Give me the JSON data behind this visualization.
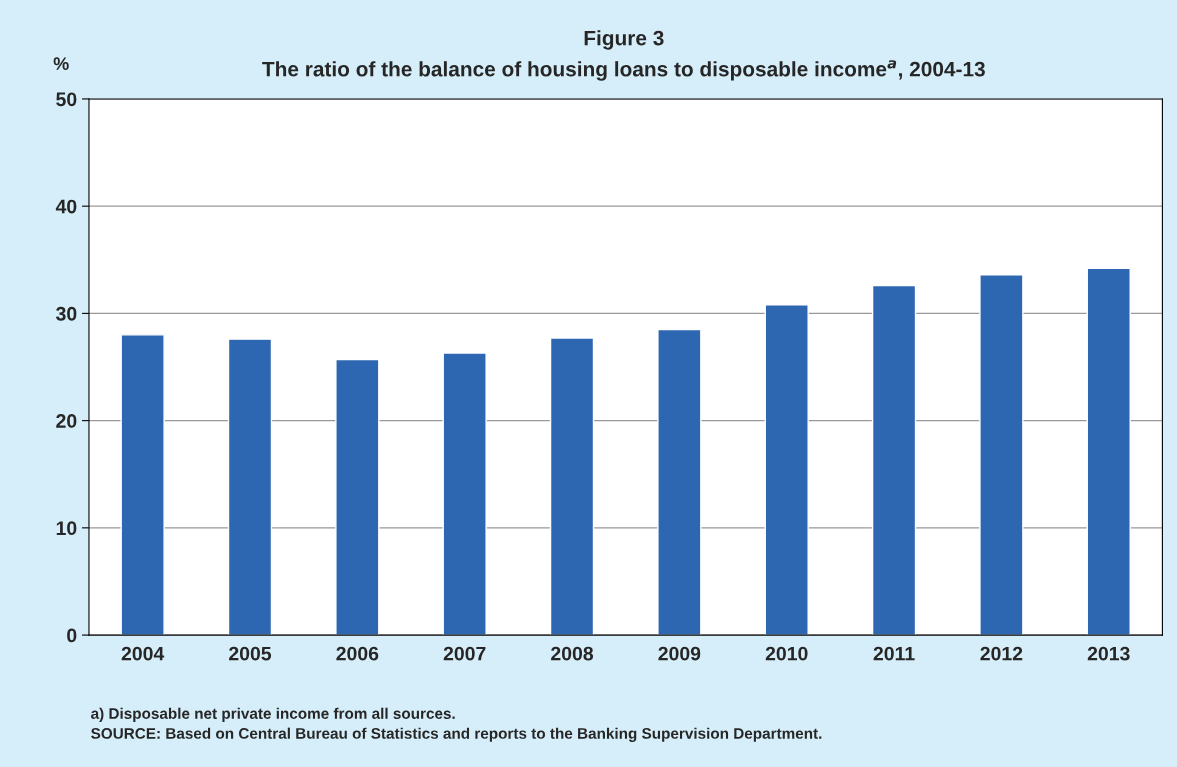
{
  "chart_data": {
    "type": "bar",
    "title": "Figure 3",
    "subtitle": "The ratio of the balance of housing loans to disposable income$^{a}$, 2004-13",
    "ylabel": "%",
    "categories": [
      "2004",
      "2005",
      "2006",
      "2007",
      "2008",
      "2009",
      "2010",
      "2011",
      "2012",
      "2013"
    ],
    "values": [
      28.0,
      27.6,
      25.7,
      26.3,
      27.7,
      28.5,
      30.8,
      32.6,
      33.6,
      34.2
    ],
    "color": "#2e67b1",
    "ylim": [
      0,
      50
    ],
    "yticks": [
      0,
      10,
      20,
      30,
      40,
      50
    ],
    "grid": "y",
    "annotations": [
      "a) Disposable net private income from all sources.",
      "SOURCE: Based on Central Bureau of Statistics and reports to the Banking Supervision Department."
    ]
  }
}
